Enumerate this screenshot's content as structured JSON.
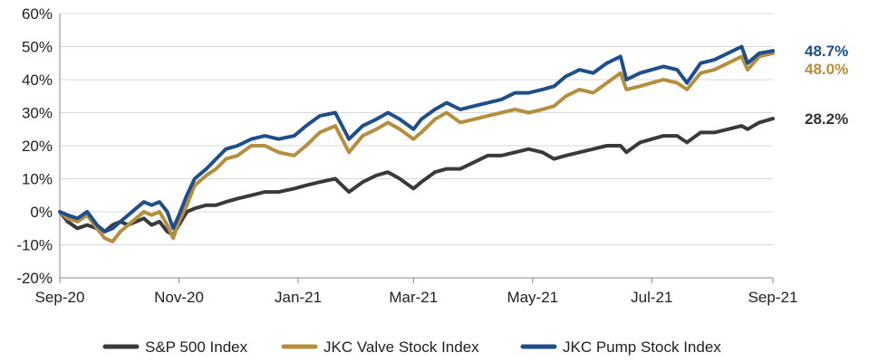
{
  "chart_data": {
    "type": "line",
    "y_unit": "%",
    "ylim": [
      -20,
      60
    ],
    "y_ticks": [
      -20,
      -10,
      0,
      10,
      20,
      30,
      40,
      50,
      60
    ],
    "y_tick_labels": [
      "-20%",
      "-10%",
      "0%",
      "10%",
      "20%",
      "30%",
      "40%",
      "50%",
      "60%"
    ],
    "x_domain": [
      "2020-09-01",
      "2021-09-01"
    ],
    "x_ticks": [
      "2020-09-01",
      "2020-11-01",
      "2021-01-01",
      "2021-03-01",
      "2021-05-01",
      "2021-07-01",
      "2021-09-01"
    ],
    "x_tick_labels": [
      "Sep-20",
      "Nov-20",
      "Jan-21",
      "Mar-21",
      "May-21",
      "Jul-21",
      "Sep-21"
    ],
    "grid": true,
    "legend_position": "bottom",
    "series": [
      {
        "name": "S&P 500 Index",
        "color": "#3a3a3a",
        "end_label": "28.2%",
        "points": [
          [
            "2020-09-01",
            0
          ],
          [
            "2020-09-05",
            -3
          ],
          [
            "2020-09-10",
            -5
          ],
          [
            "2020-09-15",
            -4
          ],
          [
            "2020-09-20",
            -5
          ],
          [
            "2020-09-24",
            -6
          ],
          [
            "2020-09-28",
            -4
          ],
          [
            "2020-10-02",
            -3
          ],
          [
            "2020-10-06",
            -4
          ],
          [
            "2020-10-10",
            -3
          ],
          [
            "2020-10-14",
            -2
          ],
          [
            "2020-10-18",
            -4
          ],
          [
            "2020-10-22",
            -3
          ],
          [
            "2020-10-26",
            -6
          ],
          [
            "2020-10-29",
            -7
          ],
          [
            "2020-11-01",
            -4
          ],
          [
            "2020-11-05",
            0
          ],
          [
            "2020-11-09",
            1
          ],
          [
            "2020-11-15",
            2
          ],
          [
            "2020-11-20",
            2
          ],
          [
            "2020-11-25",
            3
          ],
          [
            "2020-12-01",
            4
          ],
          [
            "2020-12-08",
            5
          ],
          [
            "2020-12-15",
            6
          ],
          [
            "2020-12-22",
            6
          ],
          [
            "2020-12-30",
            7
          ],
          [
            "2021-01-05",
            8
          ],
          [
            "2021-01-12",
            9
          ],
          [
            "2021-01-20",
            10
          ],
          [
            "2021-01-27",
            6
          ],
          [
            "2021-02-03",
            9
          ],
          [
            "2021-02-10",
            11
          ],
          [
            "2021-02-16",
            12
          ],
          [
            "2021-02-22",
            10
          ],
          [
            "2021-03-01",
            7
          ],
          [
            "2021-03-05",
            9
          ],
          [
            "2021-03-12",
            12
          ],
          [
            "2021-03-18",
            13
          ],
          [
            "2021-03-25",
            13
          ],
          [
            "2021-04-01",
            15
          ],
          [
            "2021-04-08",
            17
          ],
          [
            "2021-04-15",
            17
          ],
          [
            "2021-04-22",
            18
          ],
          [
            "2021-04-29",
            19
          ],
          [
            "2021-05-06",
            18
          ],
          [
            "2021-05-12",
            16
          ],
          [
            "2021-05-18",
            17
          ],
          [
            "2021-05-25",
            18
          ],
          [
            "2021-06-01",
            19
          ],
          [
            "2021-06-08",
            20
          ],
          [
            "2021-06-15",
            20
          ],
          [
            "2021-06-18",
            18
          ],
          [
            "2021-06-25",
            21
          ],
          [
            "2021-07-01",
            22
          ],
          [
            "2021-07-07",
            23
          ],
          [
            "2021-07-14",
            23
          ],
          [
            "2021-07-19",
            21
          ],
          [
            "2021-07-26",
            24
          ],
          [
            "2021-08-02",
            24
          ],
          [
            "2021-08-09",
            25
          ],
          [
            "2021-08-16",
            26
          ],
          [
            "2021-08-19",
            25
          ],
          [
            "2021-08-25",
            27
          ],
          [
            "2021-09-01",
            28.2
          ]
        ]
      },
      {
        "name": "JKC Valve Stock Index",
        "color": "#b58f3e",
        "end_label": "48.0%",
        "points": [
          [
            "2020-09-01",
            0
          ],
          [
            "2020-09-05",
            -2
          ],
          [
            "2020-09-10",
            -3
          ],
          [
            "2020-09-15",
            -1
          ],
          [
            "2020-09-20",
            -5
          ],
          [
            "2020-09-24",
            -8
          ],
          [
            "2020-09-28",
            -9
          ],
          [
            "2020-10-02",
            -6
          ],
          [
            "2020-10-06",
            -4
          ],
          [
            "2020-10-10",
            -2
          ],
          [
            "2020-10-14",
            0
          ],
          [
            "2020-10-18",
            -1
          ],
          [
            "2020-10-22",
            0
          ],
          [
            "2020-10-26",
            -4
          ],
          [
            "2020-10-29",
            -8
          ],
          [
            "2020-11-01",
            -3
          ],
          [
            "2020-11-05",
            2
          ],
          [
            "2020-11-09",
            8
          ],
          [
            "2020-11-15",
            11
          ],
          [
            "2020-11-20",
            13
          ],
          [
            "2020-11-25",
            16
          ],
          [
            "2020-12-01",
            17
          ],
          [
            "2020-12-08",
            20
          ],
          [
            "2020-12-15",
            20
          ],
          [
            "2020-12-22",
            18
          ],
          [
            "2020-12-30",
            17
          ],
          [
            "2021-01-05",
            20
          ],
          [
            "2021-01-12",
            24
          ],
          [
            "2021-01-20",
            26
          ],
          [
            "2021-01-27",
            18
          ],
          [
            "2021-02-03",
            23
          ],
          [
            "2021-02-10",
            25
          ],
          [
            "2021-02-16",
            27
          ],
          [
            "2021-02-22",
            25
          ],
          [
            "2021-03-01",
            22
          ],
          [
            "2021-03-05",
            24
          ],
          [
            "2021-03-12",
            28
          ],
          [
            "2021-03-18",
            30
          ],
          [
            "2021-03-25",
            27
          ],
          [
            "2021-04-01",
            28
          ],
          [
            "2021-04-08",
            29
          ],
          [
            "2021-04-15",
            30
          ],
          [
            "2021-04-22",
            31
          ],
          [
            "2021-04-29",
            30
          ],
          [
            "2021-05-06",
            31
          ],
          [
            "2021-05-12",
            32
          ],
          [
            "2021-05-18",
            35
          ],
          [
            "2021-05-25",
            37
          ],
          [
            "2021-06-01",
            36
          ],
          [
            "2021-06-08",
            39
          ],
          [
            "2021-06-15",
            42
          ],
          [
            "2021-06-18",
            37
          ],
          [
            "2021-06-25",
            38
          ],
          [
            "2021-07-01",
            39
          ],
          [
            "2021-07-07",
            40
          ],
          [
            "2021-07-14",
            39
          ],
          [
            "2021-07-19",
            37
          ],
          [
            "2021-07-26",
            42
          ],
          [
            "2021-08-02",
            43
          ],
          [
            "2021-08-09",
            45
          ],
          [
            "2021-08-16",
            47
          ],
          [
            "2021-08-19",
            43
          ],
          [
            "2021-08-25",
            47
          ],
          [
            "2021-09-01",
            48.0
          ]
        ]
      },
      {
        "name": "JKC Pump Stock Index",
        "color": "#1f4e8c",
        "end_label": "48.7%",
        "points": [
          [
            "2020-09-01",
            0
          ],
          [
            "2020-09-05",
            -1
          ],
          [
            "2020-09-10",
            -2
          ],
          [
            "2020-09-15",
            0
          ],
          [
            "2020-09-20",
            -4
          ],
          [
            "2020-09-24",
            -6
          ],
          [
            "2020-09-28",
            -5
          ],
          [
            "2020-10-02",
            -3
          ],
          [
            "2020-10-06",
            -1
          ],
          [
            "2020-10-10",
            1
          ],
          [
            "2020-10-14",
            3
          ],
          [
            "2020-10-18",
            2
          ],
          [
            "2020-10-22",
            3
          ],
          [
            "2020-10-26",
            0
          ],
          [
            "2020-10-29",
            -5
          ],
          [
            "2020-11-01",
            -1
          ],
          [
            "2020-11-05",
            5
          ],
          [
            "2020-11-09",
            10
          ],
          [
            "2020-11-15",
            13
          ],
          [
            "2020-11-20",
            16
          ],
          [
            "2020-11-25",
            19
          ],
          [
            "2020-12-01",
            20
          ],
          [
            "2020-12-08",
            22
          ],
          [
            "2020-12-15",
            23
          ],
          [
            "2020-12-22",
            22
          ],
          [
            "2020-12-30",
            23
          ],
          [
            "2021-01-05",
            26
          ],
          [
            "2021-01-12",
            29
          ],
          [
            "2021-01-20",
            30
          ],
          [
            "2021-01-27",
            22
          ],
          [
            "2021-02-03",
            26
          ],
          [
            "2021-02-10",
            28
          ],
          [
            "2021-02-16",
            30
          ],
          [
            "2021-02-22",
            28
          ],
          [
            "2021-03-01",
            25
          ],
          [
            "2021-03-05",
            28
          ],
          [
            "2021-03-12",
            31
          ],
          [
            "2021-03-18",
            33
          ],
          [
            "2021-03-25",
            31
          ],
          [
            "2021-04-01",
            32
          ],
          [
            "2021-04-08",
            33
          ],
          [
            "2021-04-15",
            34
          ],
          [
            "2021-04-22",
            36
          ],
          [
            "2021-04-29",
            36
          ],
          [
            "2021-05-06",
            37
          ],
          [
            "2021-05-12",
            38
          ],
          [
            "2021-05-18",
            41
          ],
          [
            "2021-05-25",
            43
          ],
          [
            "2021-06-01",
            42
          ],
          [
            "2021-06-08",
            45
          ],
          [
            "2021-06-15",
            47
          ],
          [
            "2021-06-18",
            40
          ],
          [
            "2021-06-25",
            42
          ],
          [
            "2021-07-01",
            43
          ],
          [
            "2021-07-07",
            44
          ],
          [
            "2021-07-14",
            43
          ],
          [
            "2021-07-19",
            39
          ],
          [
            "2021-07-26",
            45
          ],
          [
            "2021-08-02",
            46
          ],
          [
            "2021-08-09",
            48
          ],
          [
            "2021-08-16",
            50
          ],
          [
            "2021-08-19",
            45
          ],
          [
            "2021-08-25",
            48
          ],
          [
            "2021-09-01",
            48.7
          ]
        ]
      }
    ]
  }
}
